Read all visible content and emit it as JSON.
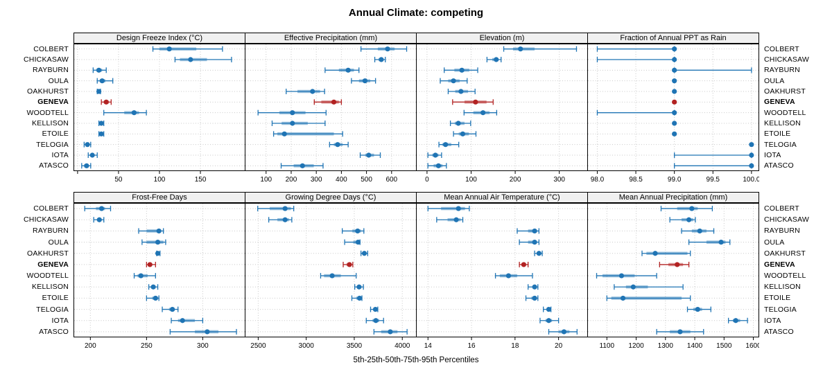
{
  "title": "Annual Climate: competing",
  "footer": "5th-25th-50th-75th-95th Percentiles",
  "sites": [
    "COLBERT",
    "CHICKASAW",
    "RAYBURN",
    "OULA",
    "OAKHURST",
    "GENEVA",
    "WOODTELL",
    "KELLISON",
    "ETOILE",
    "TELOGIA",
    "IOTA",
    "ATASCO"
  ],
  "highlight_site": "GENEVA",
  "percentiles": [
    5,
    25,
    50,
    75,
    95
  ],
  "colors": {
    "series": "#1f74b4",
    "highlight": "#b22222",
    "grid": "#c8c8c8",
    "border": "#000000",
    "strip_bg": "#f0f0f0"
  },
  "chart_data": [
    {
      "type": "dot-interval",
      "title": "Design Freeze Index (°C)",
      "xlim": [
        -5,
        205
      ],
      "ticks": [
        0,
        50,
        100,
        150
      ],
      "tick_labels": [
        "",
        "50",
        "100",
        "150"
      ],
      "rows": [
        [
          92,
          100,
          112,
          145,
          177
        ],
        [
          119,
          125,
          138,
          158,
          188
        ],
        [
          19,
          23,
          26,
          30,
          35
        ],
        [
          24,
          27,
          30,
          34,
          43
        ],
        [
          24,
          25,
          26,
          27,
          28
        ],
        [
          29,
          32,
          35,
          38,
          41
        ],
        [
          32,
          57,
          69,
          75,
          84
        ],
        [
          26,
          28,
          29,
          30,
          32
        ],
        [
          26,
          28,
          29,
          30,
          32
        ],
        [
          8,
          10,
          12,
          14,
          16
        ],
        [
          13,
          16,
          18,
          20,
          24
        ],
        [
          5,
          8,
          11,
          13,
          16
        ]
      ]
    },
    {
      "type": "dot-interval",
      "title": "Effective Precipitation (mm)",
      "xlim": [
        15,
        700
      ],
      "ticks": [
        100,
        200,
        300,
        400,
        500,
        600
      ],
      "tick_labels": [
        "100",
        "200",
        "300",
        "400",
        "500",
        "600"
      ],
      "rows": [
        [
          478,
          545,
          584,
          612,
          660
        ],
        [
          533,
          548,
          559,
          568,
          575
        ],
        [
          335,
          390,
          427,
          450,
          470
        ],
        [
          440,
          470,
          494,
          515,
          536
        ],
        [
          180,
          225,
          285,
          315,
          333
        ],
        [
          292,
          320,
          370,
          390,
          400
        ],
        [
          68,
          153,
          205,
          257,
          339
        ],
        [
          124,
          162,
          205,
          266,
          335
        ],
        [
          130,
          145,
          173,
          370,
          405
        ],
        [
          353,
          370,
          385,
          405,
          427
        ],
        [
          475,
          495,
          509,
          530,
          555
        ],
        [
          160,
          210,
          245,
          290,
          327
        ]
      ]
    },
    {
      "type": "dot-interval",
      "title": "Elevation (m)",
      "xlim": [
        -25,
        365
      ],
      "ticks": [
        0,
        100,
        200,
        300
      ],
      "tick_labels": [
        "0",
        "100",
        "200",
        "300"
      ],
      "rows": [
        [
          174,
          195,
          212,
          244,
          339
        ],
        [
          136,
          148,
          157,
          162,
          168
        ],
        [
          39,
          62,
          79,
          96,
          115
        ],
        [
          30,
          48,
          60,
          74,
          91
        ],
        [
          48,
          64,
          77,
          93,
          109
        ],
        [
          58,
          85,
          110,
          135,
          150
        ],
        [
          84,
          105,
          127,
          142,
          158
        ],
        [
          53,
          63,
          71,
          85,
          99
        ],
        [
          60,
          72,
          81,
          95,
          111
        ],
        [
          27,
          35,
          42,
          55,
          72
        ],
        [
          2,
          12,
          19,
          26,
          33
        ],
        [
          2,
          15,
          26,
          35,
          44
        ]
      ]
    },
    {
      "type": "dot-interval",
      "title": "Fraction of Annual PPT as Rain",
      "xlim": [
        97.87,
        100.1
      ],
      "ticks": [
        98.0,
        98.5,
        99.0,
        99.5,
        100.0
      ],
      "tick_labels": [
        "98.0",
        "98.5",
        "99.0",
        "99.5",
        "100.0"
      ],
      "rows": [
        [
          98,
          99,
          99,
          99,
          99
        ],
        [
          98,
          99,
          99,
          99,
          99
        ],
        [
          99,
          99,
          99,
          99,
          100
        ],
        [
          99,
          99,
          99,
          99,
          99
        ],
        [
          99,
          99,
          99,
          99,
          99
        ],
        [
          99,
          99,
          99,
          99,
          99
        ],
        [
          98,
          99,
          99,
          99,
          99
        ],
        [
          99,
          99,
          99,
          99,
          99
        ],
        [
          99,
          99,
          99,
          99,
          99
        ],
        [
          100,
          100,
          100,
          100,
          100
        ],
        [
          99,
          100,
          100,
          100,
          100
        ],
        [
          99,
          100,
          100,
          100,
          100
        ]
      ]
    },
    {
      "type": "dot-interval",
      "title": "Frost-Free Days",
      "xlim": [
        185,
        338
      ],
      "ticks": [
        200,
        250,
        300
      ],
      "tick_labels": [
        "200",
        "250",
        "300"
      ],
      "rows": [
        [
          195,
          205,
          210,
          213,
          218
        ],
        [
          203,
          206,
          208,
          210,
          212
        ],
        [
          243,
          250,
          261,
          263,
          265
        ],
        [
          246,
          250,
          260,
          265,
          267
        ],
        [
          259,
          260,
          260,
          261,
          262
        ],
        [
          250,
          252,
          253,
          255,
          258
        ],
        [
          239,
          242,
          245,
          251,
          258
        ],
        [
          252,
          254,
          256,
          258,
          260
        ],
        [
          250,
          255,
          258,
          260,
          261
        ],
        [
          264,
          270,
          273,
          275,
          278
        ],
        [
          272,
          278,
          282,
          293,
          300
        ],
        [
          271,
          293,
          304,
          314,
          330
        ]
      ]
    },
    {
      "type": "dot-interval",
      "title": "Growing Degree Days (°C)",
      "xlim": [
        2360,
        4150
      ],
      "ticks": [
        2500,
        3000,
        3500,
        4000
      ],
      "tick_labels": [
        "2500",
        "3000",
        "3500",
        "4000"
      ],
      "rows": [
        [
          2495,
          2620,
          2780,
          2840,
          2870
        ],
        [
          2610,
          2700,
          2780,
          2820,
          2850
        ],
        [
          3375,
          3480,
          3535,
          3570,
          3600
        ],
        [
          3400,
          3490,
          3540,
          3555,
          3560
        ],
        [
          3570,
          3590,
          3605,
          3620,
          3640
        ],
        [
          3385,
          3420,
          3450,
          3470,
          3485
        ],
        [
          3150,
          3185,
          3270,
          3360,
          3520
        ],
        [
          3505,
          3530,
          3550,
          3575,
          3595
        ],
        [
          3475,
          3520,
          3555,
          3570,
          3580
        ],
        [
          3670,
          3700,
          3720,
          3730,
          3745
        ],
        [
          3625,
          3690,
          3725,
          3760,
          3805
        ],
        [
          3705,
          3780,
          3875,
          3950,
          4050
        ]
      ]
    },
    {
      "type": "dot-interval",
      "title": "Mean Annual Air Temperature (°C)",
      "xlim": [
        13.45,
        21.35
      ],
      "ticks": [
        14,
        16,
        18,
        20
      ],
      "tick_labels": [
        "14",
        "16",
        "18",
        "20"
      ],
      "rows": [
        [
          14.0,
          14.6,
          15.4,
          15.7,
          15.9
        ],
        [
          14.4,
          14.9,
          15.3,
          15.5,
          15.6
        ],
        [
          18.1,
          18.6,
          18.9,
          19.0,
          19.1
        ],
        [
          18.2,
          18.6,
          18.9,
          19.0,
          19.1
        ],
        [
          18.9,
          19.0,
          19.1,
          19.2,
          19.25
        ],
        [
          18.2,
          18.3,
          18.4,
          18.5,
          18.6
        ],
        [
          17.1,
          17.3,
          17.7,
          18.1,
          18.8
        ],
        [
          18.6,
          18.8,
          18.9,
          19.0,
          19.05
        ],
        [
          18.5,
          18.75,
          18.9,
          18.95,
          19.05
        ],
        [
          19.3,
          19.45,
          19.55,
          19.6,
          19.65
        ],
        [
          19.15,
          19.4,
          19.55,
          19.7,
          20.0
        ],
        [
          19.55,
          20.0,
          20.25,
          20.5,
          20.85
        ]
      ]
    },
    {
      "type": "dot-interval",
      "title": "Mean Annual Precipitation (mm)",
      "xlim": [
        1033,
        1620
      ],
      "ticks": [
        1100,
        1200,
        1300,
        1400,
        1500,
        1600
      ],
      "tick_labels": [
        "1100",
        "1200",
        "1300",
        "1400",
        "1500",
        "1600"
      ],
      "rows": [
        [
          1285,
          1340,
          1390,
          1410,
          1460
        ],
        [
          1315,
          1355,
          1380,
          1395,
          1402
        ],
        [
          1355,
          1390,
          1417,
          1440,
          1465
        ],
        [
          1380,
          1440,
          1490,
          1505,
          1520
        ],
        [
          1220,
          1235,
          1265,
          1375,
          1385
        ],
        [
          1280,
          1310,
          1340,
          1360,
          1380
        ],
        [
          1065,
          1085,
          1150,
          1195,
          1270
        ],
        [
          1125,
          1165,
          1190,
          1240,
          1360
        ],
        [
          1100,
          1115,
          1155,
          1355,
          1385
        ],
        [
          1375,
          1395,
          1410,
          1425,
          1455
        ],
        [
          1515,
          1530,
          1540,
          1555,
          1580
        ],
        [
          1270,
          1315,
          1350,
          1385,
          1430
        ]
      ]
    }
  ]
}
